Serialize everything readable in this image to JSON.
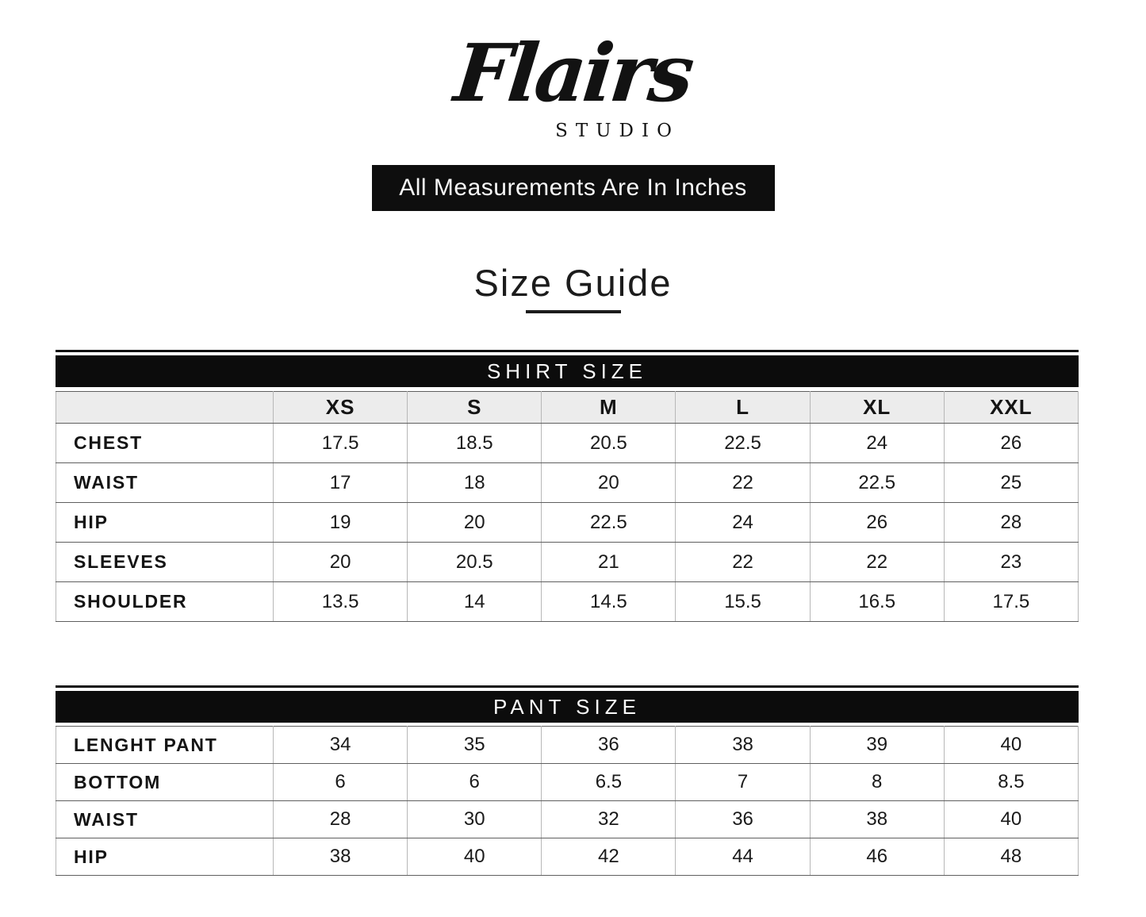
{
  "brand": {
    "name": "Flairs",
    "subtitle": "STUDIO"
  },
  "banner": {
    "text": "All Measurements Are In Inches"
  },
  "page_title": "Size Guide",
  "colors": {
    "bar_background": "#0c0c0c",
    "bar_text": "#fafafa",
    "header_row_background": "#ececec",
    "text": "#161616",
    "background": "#ffffff"
  },
  "shirt_table": {
    "title": "SHIRT SIZE",
    "columns": [
      "XS",
      "S",
      "M",
      "L",
      "XL",
      "XXL"
    ],
    "rows": [
      {
        "label": "CHEST",
        "values": [
          "17.5",
          "18.5",
          "20.5",
          "22.5",
          "24",
          "26"
        ]
      },
      {
        "label": "WAIST",
        "values": [
          "17",
          "18",
          "20",
          "22",
          "22.5",
          "25"
        ]
      },
      {
        "label": "HIP",
        "values": [
          "19",
          "20",
          "22.5",
          "24",
          "26",
          "28"
        ]
      },
      {
        "label": "SLEEVES",
        "values": [
          "20",
          "20.5",
          "21",
          "22",
          "22",
          "23"
        ]
      },
      {
        "label": "SHOULDER",
        "values": [
          "13.5",
          "14",
          "14.5",
          "15.5",
          "16.5",
          "17.5"
        ]
      }
    ]
  },
  "pant_table": {
    "title": "PANT SIZE",
    "rows": [
      {
        "label": "LENGHT PANT",
        "values": [
          "34",
          "35",
          "36",
          "38",
          "39",
          "40"
        ]
      },
      {
        "label": "BOTTOM",
        "values": [
          "6",
          "6",
          "6.5",
          "7",
          "8",
          "8.5"
        ]
      },
      {
        "label": "WAIST",
        "values": [
          "28",
          "30",
          "32",
          "36",
          "38",
          "40"
        ]
      },
      {
        "label": "HIP",
        "values": [
          "38",
          "40",
          "42",
          "44",
          "46",
          "48"
        ]
      }
    ]
  }
}
